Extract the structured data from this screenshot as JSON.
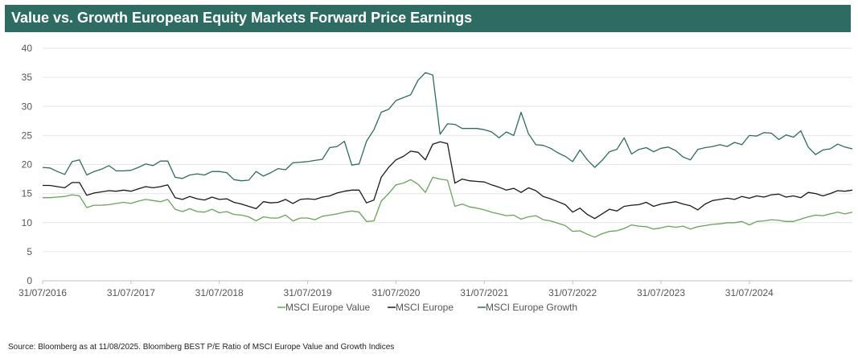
{
  "header": {
    "title": "Value vs. Growth European Equity Markets Forward Price Earnings"
  },
  "footer": {
    "source": "Source: Bloomberg as at 11/08/2025. Bloomberg BEST P/E Ratio of MSCI Europe Value and Growth Indices"
  },
  "colors": {
    "title_bg": "#2d6b63",
    "value": "#6aa25a",
    "europe": "#1a1a1a",
    "growth": "#2e6b62",
    "axis": "#bfbfbf"
  },
  "chart_data": {
    "type": "line",
    "title": "Value vs. Growth European Equity Markets Forward Price Earnings",
    "xlabel": "",
    "ylabel": "",
    "ylim": [
      0,
      40
    ],
    "yticks": [
      "0",
      "5",
      "10",
      "15",
      "20",
      "25",
      "30",
      "35",
      "40"
    ],
    "x_start": "31/07/2016",
    "x_step": "monthly",
    "xticks": [
      {
        "label": "31/07/2016",
        "index": 0
      },
      {
        "label": "31/07/2017",
        "index": 12
      },
      {
        "label": "31/07/2018",
        "index": 24
      },
      {
        "label": "31/07/2019",
        "index": 36
      },
      {
        "label": "31/07/2020",
        "index": 48
      },
      {
        "label": "31/07/2021",
        "index": 60
      },
      {
        "label": "31/07/2022",
        "index": 72
      },
      {
        "label": "31/07/2023",
        "index": 84
      },
      {
        "label": "31/07/2024",
        "index": 96
      }
    ],
    "legend_position": "bottom",
    "series": [
      {
        "name": "MSCI Europe Value",
        "color": "#6aa25a",
        "values": [
          14.3,
          14.3,
          14.4,
          14.5,
          14.8,
          14.6,
          12.6,
          13.0,
          13.0,
          13.1,
          13.3,
          13.5,
          13.3,
          13.7,
          14.0,
          13.8,
          13.6,
          14.0,
          12.3,
          11.9,
          12.4,
          11.9,
          11.8,
          12.3,
          11.7,
          11.9,
          11.4,
          11.3,
          11.0,
          10.3,
          11.0,
          10.8,
          10.8,
          11.3,
          10.3,
          10.8,
          10.8,
          10.5,
          11.1,
          11.3,
          11.5,
          11.8,
          12.0,
          11.8,
          10.2,
          10.3,
          13.7,
          15.0,
          16.5,
          16.8,
          17.4,
          16.6,
          15.2,
          17.8,
          17.5,
          17.3,
          12.8,
          13.2,
          12.7,
          12.5,
          12.2,
          11.8,
          11.5,
          11.2,
          11.3,
          10.6,
          11.0,
          11.2,
          10.5,
          10.3,
          9.9,
          9.5,
          8.5,
          8.6,
          8.0,
          7.5,
          8.1,
          8.5,
          8.6,
          9.0,
          9.6,
          9.4,
          9.3,
          8.9,
          9.1,
          9.4,
          9.2,
          9.4,
          8.9,
          9.3,
          9.5,
          9.7,
          9.8,
          10.0,
          10.0,
          10.2,
          9.6,
          10.2,
          10.3,
          10.5,
          10.4,
          10.2,
          10.2,
          10.6,
          11.0,
          11.3,
          11.2,
          11.5,
          11.8,
          11.5,
          11.8
        ]
      },
      {
        "name": "MSCI Europe",
        "color": "#1a1a1a",
        "values": [
          16.4,
          16.4,
          16.2,
          16.0,
          16.9,
          16.9,
          14.7,
          15.1,
          15.3,
          15.5,
          15.4,
          15.6,
          15.4,
          15.8,
          16.2,
          16.0,
          16.2,
          16.5,
          14.3,
          14.0,
          14.5,
          14.1,
          13.9,
          14.4,
          14.0,
          14.1,
          13.5,
          13.2,
          12.8,
          12.4,
          13.6,
          13.4,
          13.5,
          14.0,
          13.3,
          14.0,
          14.1,
          14.0,
          14.4,
          14.6,
          15.1,
          15.4,
          15.6,
          15.6,
          13.4,
          13.9,
          17.8,
          19.5,
          20.8,
          21.4,
          22.3,
          22.1,
          20.8,
          23.5,
          23.9,
          23.6,
          16.8,
          17.5,
          17.2,
          17.1,
          17.0,
          16.5,
          16.1,
          15.6,
          15.9,
          15.2,
          16.0,
          15.5,
          14.5,
          14.1,
          13.6,
          13.1,
          11.8,
          12.5,
          11.4,
          10.7,
          11.5,
          12.3,
          12.0,
          12.8,
          13.0,
          13.1,
          13.5,
          12.8,
          13.2,
          13.4,
          13.6,
          13.2,
          12.9,
          12.2,
          13.2,
          13.8,
          14.0,
          14.2,
          14.0,
          14.5,
          14.2,
          14.6,
          14.4,
          14.8,
          14.9,
          14.4,
          14.6,
          14.3,
          15.2,
          15.0,
          14.6,
          15.0,
          15.5,
          15.4,
          15.6
        ]
      },
      {
        "name": "MSCI Europe Growth",
        "color": "#2e6b62",
        "values": [
          19.5,
          19.4,
          18.8,
          18.3,
          20.5,
          20.8,
          18.2,
          18.8,
          19.2,
          19.8,
          18.9,
          18.9,
          19.0,
          19.5,
          20.1,
          19.8,
          20.6,
          20.6,
          17.8,
          17.6,
          18.2,
          18.4,
          18.2,
          18.8,
          18.8,
          18.6,
          17.4,
          17.2,
          17.3,
          18.8,
          18.0,
          18.6,
          19.3,
          19.1,
          20.3,
          20.4,
          20.5,
          20.7,
          20.9,
          22.9,
          23.1,
          24.0,
          19.9,
          20.1,
          24.0,
          26.0,
          29.0,
          29.5,
          31.0,
          31.5,
          32.0,
          34.5,
          35.8,
          35.4,
          25.2,
          27.0,
          26.9,
          26.2,
          26.2,
          26.2,
          26.0,
          25.6,
          24.6,
          25.6,
          25.0,
          29.0,
          25.3,
          23.4,
          23.3,
          22.8,
          22.0,
          21.4,
          20.5,
          22.5,
          20.8,
          19.5,
          20.7,
          22.2,
          22.6,
          24.6,
          21.8,
          22.6,
          22.9,
          22.2,
          22.8,
          23.0,
          22.4,
          21.3,
          20.8,
          22.6,
          22.9,
          23.1,
          23.4,
          23.1,
          23.8,
          23.4,
          25.0,
          24.9,
          25.5,
          25.4,
          24.3,
          25.1,
          24.7,
          25.8,
          23.0,
          21.7,
          22.5,
          22.7,
          23.5,
          23.0,
          22.7
        ]
      }
    ]
  }
}
